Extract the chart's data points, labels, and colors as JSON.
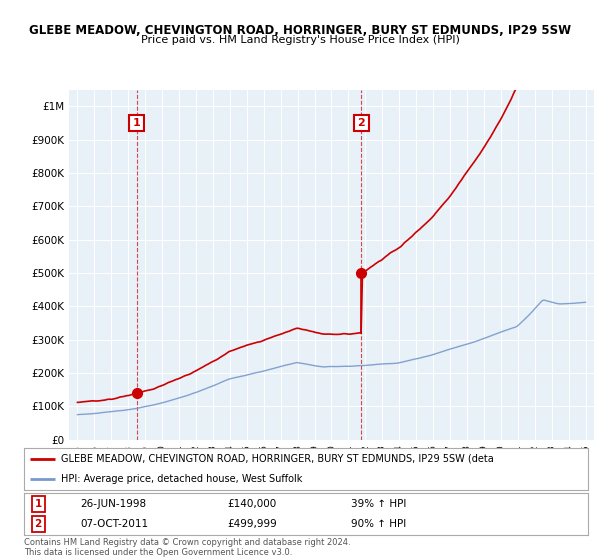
{
  "title1": "GLEBE MEADOW, CHEVINGTON ROAD, HORRINGER, BURY ST EDMUNDS, IP29 5SW",
  "title2": "Price paid vs. HM Land Registry's House Price Index (HPI)",
  "background_color": "#ffffff",
  "plot_bg_color": "#e8f0f8",
  "grid_color": "#ffffff",
  "red_color": "#cc0000",
  "blue_color": "#7799cc",
  "point1_year": 1998.49,
  "point1_value": 140000,
  "point1_label": "1",
  "point1_date": "26-JUN-1998",
  "point1_price": "£140,000",
  "point1_hpi": "39% ↑ HPI",
  "point2_year": 2011.76,
  "point2_value": 499999,
  "point2_label": "2",
  "point2_date": "07-OCT-2011",
  "point2_price": "£499,999",
  "point2_hpi": "90% ↑ HPI",
  "legend_line1": "GLEBE MEADOW, CHEVINGTON ROAD, HORRINGER, BURY ST EDMUNDS, IP29 5SW (deta",
  "legend_line2": "HPI: Average price, detached house, West Suffolk",
  "footer": "Contains HM Land Registry data © Crown copyright and database right 2024.\nThis data is licensed under the Open Government Licence v3.0.",
  "ylim": [
    0,
    1050000
  ],
  "xlim": [
    1994.5,
    2025.5
  ]
}
